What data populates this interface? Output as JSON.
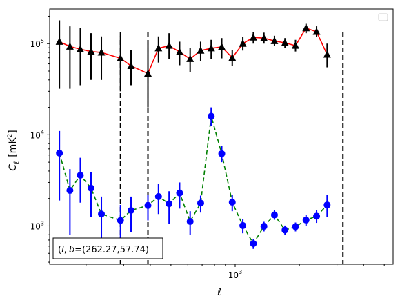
{
  "chart_data": {
    "type": "scatter",
    "title": "",
    "xlabel": "ℓ",
    "ylabel_main": "C",
    "ylabel_sub": "ℓ",
    "ylabel_unit_prefix": "[mK",
    "ylabel_unit_sup": "2",
    "ylabel_unit_suffix": "]",
    "x_scale": "log",
    "y_scale": "log",
    "xlim": [
      135,
      5500
    ],
    "ylim": [
      380,
      240000
    ],
    "x_tick_labels": [
      {
        "value": 1000,
        "base": "10",
        "exp": "3"
      }
    ],
    "y_tick_labels": [
      {
        "value": 1000,
        "base": "10",
        "exp": "3"
      },
      {
        "value": 10000,
        "base": "10",
        "exp": "4"
      },
      {
        "value": 100000,
        "base": "10",
        "exp": "5"
      }
    ],
    "grid": false,
    "legend": "empty box, top-right",
    "annotation": "(l, b)=(262.27,57.74)",
    "annotation_l": "l",
    "annotation_b": "b",
    "annotation_value": "=(262.27,57.74)",
    "vertical_lines": [
      290,
      390,
      3200
    ],
    "colors": {
      "upper_line": "#ff0000",
      "upper_marker": "#000000",
      "lower_line": "#008000",
      "lower_marker": "#0000ff"
    },
    "series": [
      {
        "marker": "triangle",
        "line_style": "solid",
        "points": [
          {
            "x": 150,
            "y": 105000,
            "lo": 32000,
            "hi": 180000
          },
          {
            "x": 168,
            "y": 93000,
            "lo": 32000,
            "hi": 155000
          },
          {
            "x": 188,
            "y": 87000,
            "lo": 35000,
            "hi": 148000
          },
          {
            "x": 211,
            "y": 82000,
            "lo": 40000,
            "hi": 130000
          },
          {
            "x": 236,
            "y": 80000,
            "lo": 40000,
            "hi": 120000
          },
          {
            "x": 290,
            "y": 69000,
            "lo": 30000,
            "hi": 120000
          },
          {
            "x": 325,
            "y": 57000,
            "lo": 35000,
            "hi": 85000
          },
          {
            "x": 390,
            "y": 47000,
            "lo": 20000,
            "hi": 100000
          },
          {
            "x": 437,
            "y": 89000,
            "lo": 62000,
            "hi": 120000
          },
          {
            "x": 490,
            "y": 95000,
            "lo": 68000,
            "hi": 130000
          },
          {
            "x": 549,
            "y": 81000,
            "lo": 58000,
            "hi": 105000
          },
          {
            "x": 615,
            "y": 68000,
            "lo": 49000,
            "hi": 90000
          },
          {
            "x": 689,
            "y": 84000,
            "lo": 64000,
            "hi": 105000
          },
          {
            "x": 772,
            "y": 89000,
            "lo": 68000,
            "hi": 110000
          },
          {
            "x": 865,
            "y": 92000,
            "lo": 69000,
            "hi": 115000
          },
          {
            "x": 969,
            "y": 70000,
            "lo": 57000,
            "hi": 85000
          },
          {
            "x": 1086,
            "y": 100000,
            "lo": 84000,
            "hi": 118000
          },
          {
            "x": 1217,
            "y": 117000,
            "lo": 100000,
            "hi": 135000
          },
          {
            "x": 1364,
            "y": 115000,
            "lo": 100000,
            "hi": 132000
          },
          {
            "x": 1528,
            "y": 107000,
            "lo": 95000,
            "hi": 122000
          },
          {
            "x": 1712,
            "y": 102000,
            "lo": 90000,
            "hi": 115000
          },
          {
            "x": 1918,
            "y": 95000,
            "lo": 82000,
            "hi": 110000
          },
          {
            "x": 2149,
            "y": 148000,
            "lo": 130000,
            "hi": 165000
          },
          {
            "x": 2408,
            "y": 135000,
            "lo": 118000,
            "hi": 155000
          },
          {
            "x": 2698,
            "y": 76000,
            "lo": 55000,
            "hi": 100000
          }
        ]
      },
      {
        "marker": "circle",
        "line_style": "dashed",
        "points": [
          {
            "x": 150,
            "y": 6300,
            "lo": 1900,
            "hi": 11000
          },
          {
            "x": 168,
            "y": 2450,
            "lo": 800,
            "hi": 4200
          },
          {
            "x": 188,
            "y": 3600,
            "lo": 1800,
            "hi": 5600
          },
          {
            "x": 211,
            "y": 2600,
            "lo": 1250,
            "hi": 3900
          },
          {
            "x": 236,
            "y": 1350,
            "lo": 600,
            "hi": 2100
          },
          {
            "x": 290,
            "y": 1150,
            "lo": 650,
            "hi": 1700
          },
          {
            "x": 325,
            "y": 1480,
            "lo": 850,
            "hi": 2100
          },
          {
            "x": 390,
            "y": 1680,
            "lo": 1150,
            "hi": 2200
          },
          {
            "x": 437,
            "y": 2100,
            "lo": 1350,
            "hi": 2900
          },
          {
            "x": 490,
            "y": 1750,
            "lo": 1050,
            "hi": 2400
          },
          {
            "x": 549,
            "y": 2300,
            "lo": 1550,
            "hi": 3000
          },
          {
            "x": 615,
            "y": 1120,
            "lo": 800,
            "hi": 1450
          },
          {
            "x": 689,
            "y": 1780,
            "lo": 1400,
            "hi": 2150
          },
          {
            "x": 772,
            "y": 16000,
            "lo": 12500,
            "hi": 20000
          },
          {
            "x": 865,
            "y": 6200,
            "lo": 5000,
            "hi": 7600
          },
          {
            "x": 969,
            "y": 1820,
            "lo": 1450,
            "hi": 2200
          },
          {
            "x": 1086,
            "y": 1010,
            "lo": 830,
            "hi": 1200
          },
          {
            "x": 1217,
            "y": 640,
            "lo": 560,
            "hi": 720
          },
          {
            "x": 1364,
            "y": 990,
            "lo": 870,
            "hi": 1110
          },
          {
            "x": 1528,
            "y": 1320,
            "lo": 1170,
            "hi": 1480
          },
          {
            "x": 1712,
            "y": 900,
            "lo": 800,
            "hi": 1010
          },
          {
            "x": 1918,
            "y": 980,
            "lo": 870,
            "hi": 1090
          },
          {
            "x": 2149,
            "y": 1160,
            "lo": 1000,
            "hi": 1330
          },
          {
            "x": 2408,
            "y": 1280,
            "lo": 1080,
            "hi": 1500
          },
          {
            "x": 2698,
            "y": 1700,
            "lo": 1250,
            "hi": 2200
          }
        ]
      }
    ]
  }
}
